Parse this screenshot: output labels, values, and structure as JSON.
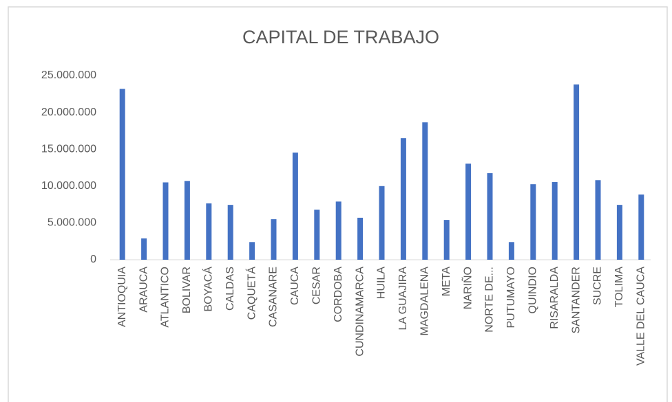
{
  "chart_data": {
    "type": "bar",
    "title": "CAPITAL DE TRABAJO",
    "categories": [
      "ANTIOQUIA",
      "ARAUCA",
      "ATLANTICO",
      "BOLIVAR",
      "BOYACÁ",
      "CALDAS",
      "CAQUETÁ",
      "CASANARE",
      "CAUCA",
      "CESAR",
      "CORDOBA",
      "CUNDINAMARCA",
      "HUILA",
      "LA GUAJIRA",
      "MAGDALENA",
      "META",
      "NARIÑO",
      "NORTE DE...",
      "PUTUMAYO",
      "QUINDIO",
      "RISARALDA",
      "SANTANDER",
      "SUCRE",
      "TOLIMA",
      "VALLE DEL CAUCA"
    ],
    "values": [
      23200000,
      2900000,
      10500000,
      10700000,
      7650000,
      7450000,
      2400000,
      5500000,
      14550000,
      6800000,
      7900000,
      5700000,
      10000000,
      16500000,
      18650000,
      5400000,
      13050000,
      11750000,
      2400000,
      10250000,
      10550000,
      23800000,
      10800000,
      7450000,
      8850000
    ],
    "color": "#4472c4",
    "ylim": [
      0,
      25000000
    ],
    "yticks": [
      0,
      {
        "value": 5000000,
        "label": "5.000.000"
      },
      {
        "value": 10000000,
        "label": "10.000.000"
      },
      {
        "value": 15000000,
        "label": "15.000.000"
      },
      {
        "value": 20000000,
        "label": "20.000.000"
      },
      {
        "value": 25000000,
        "label": "25.000.000"
      }
    ],
    "grid": false
  }
}
